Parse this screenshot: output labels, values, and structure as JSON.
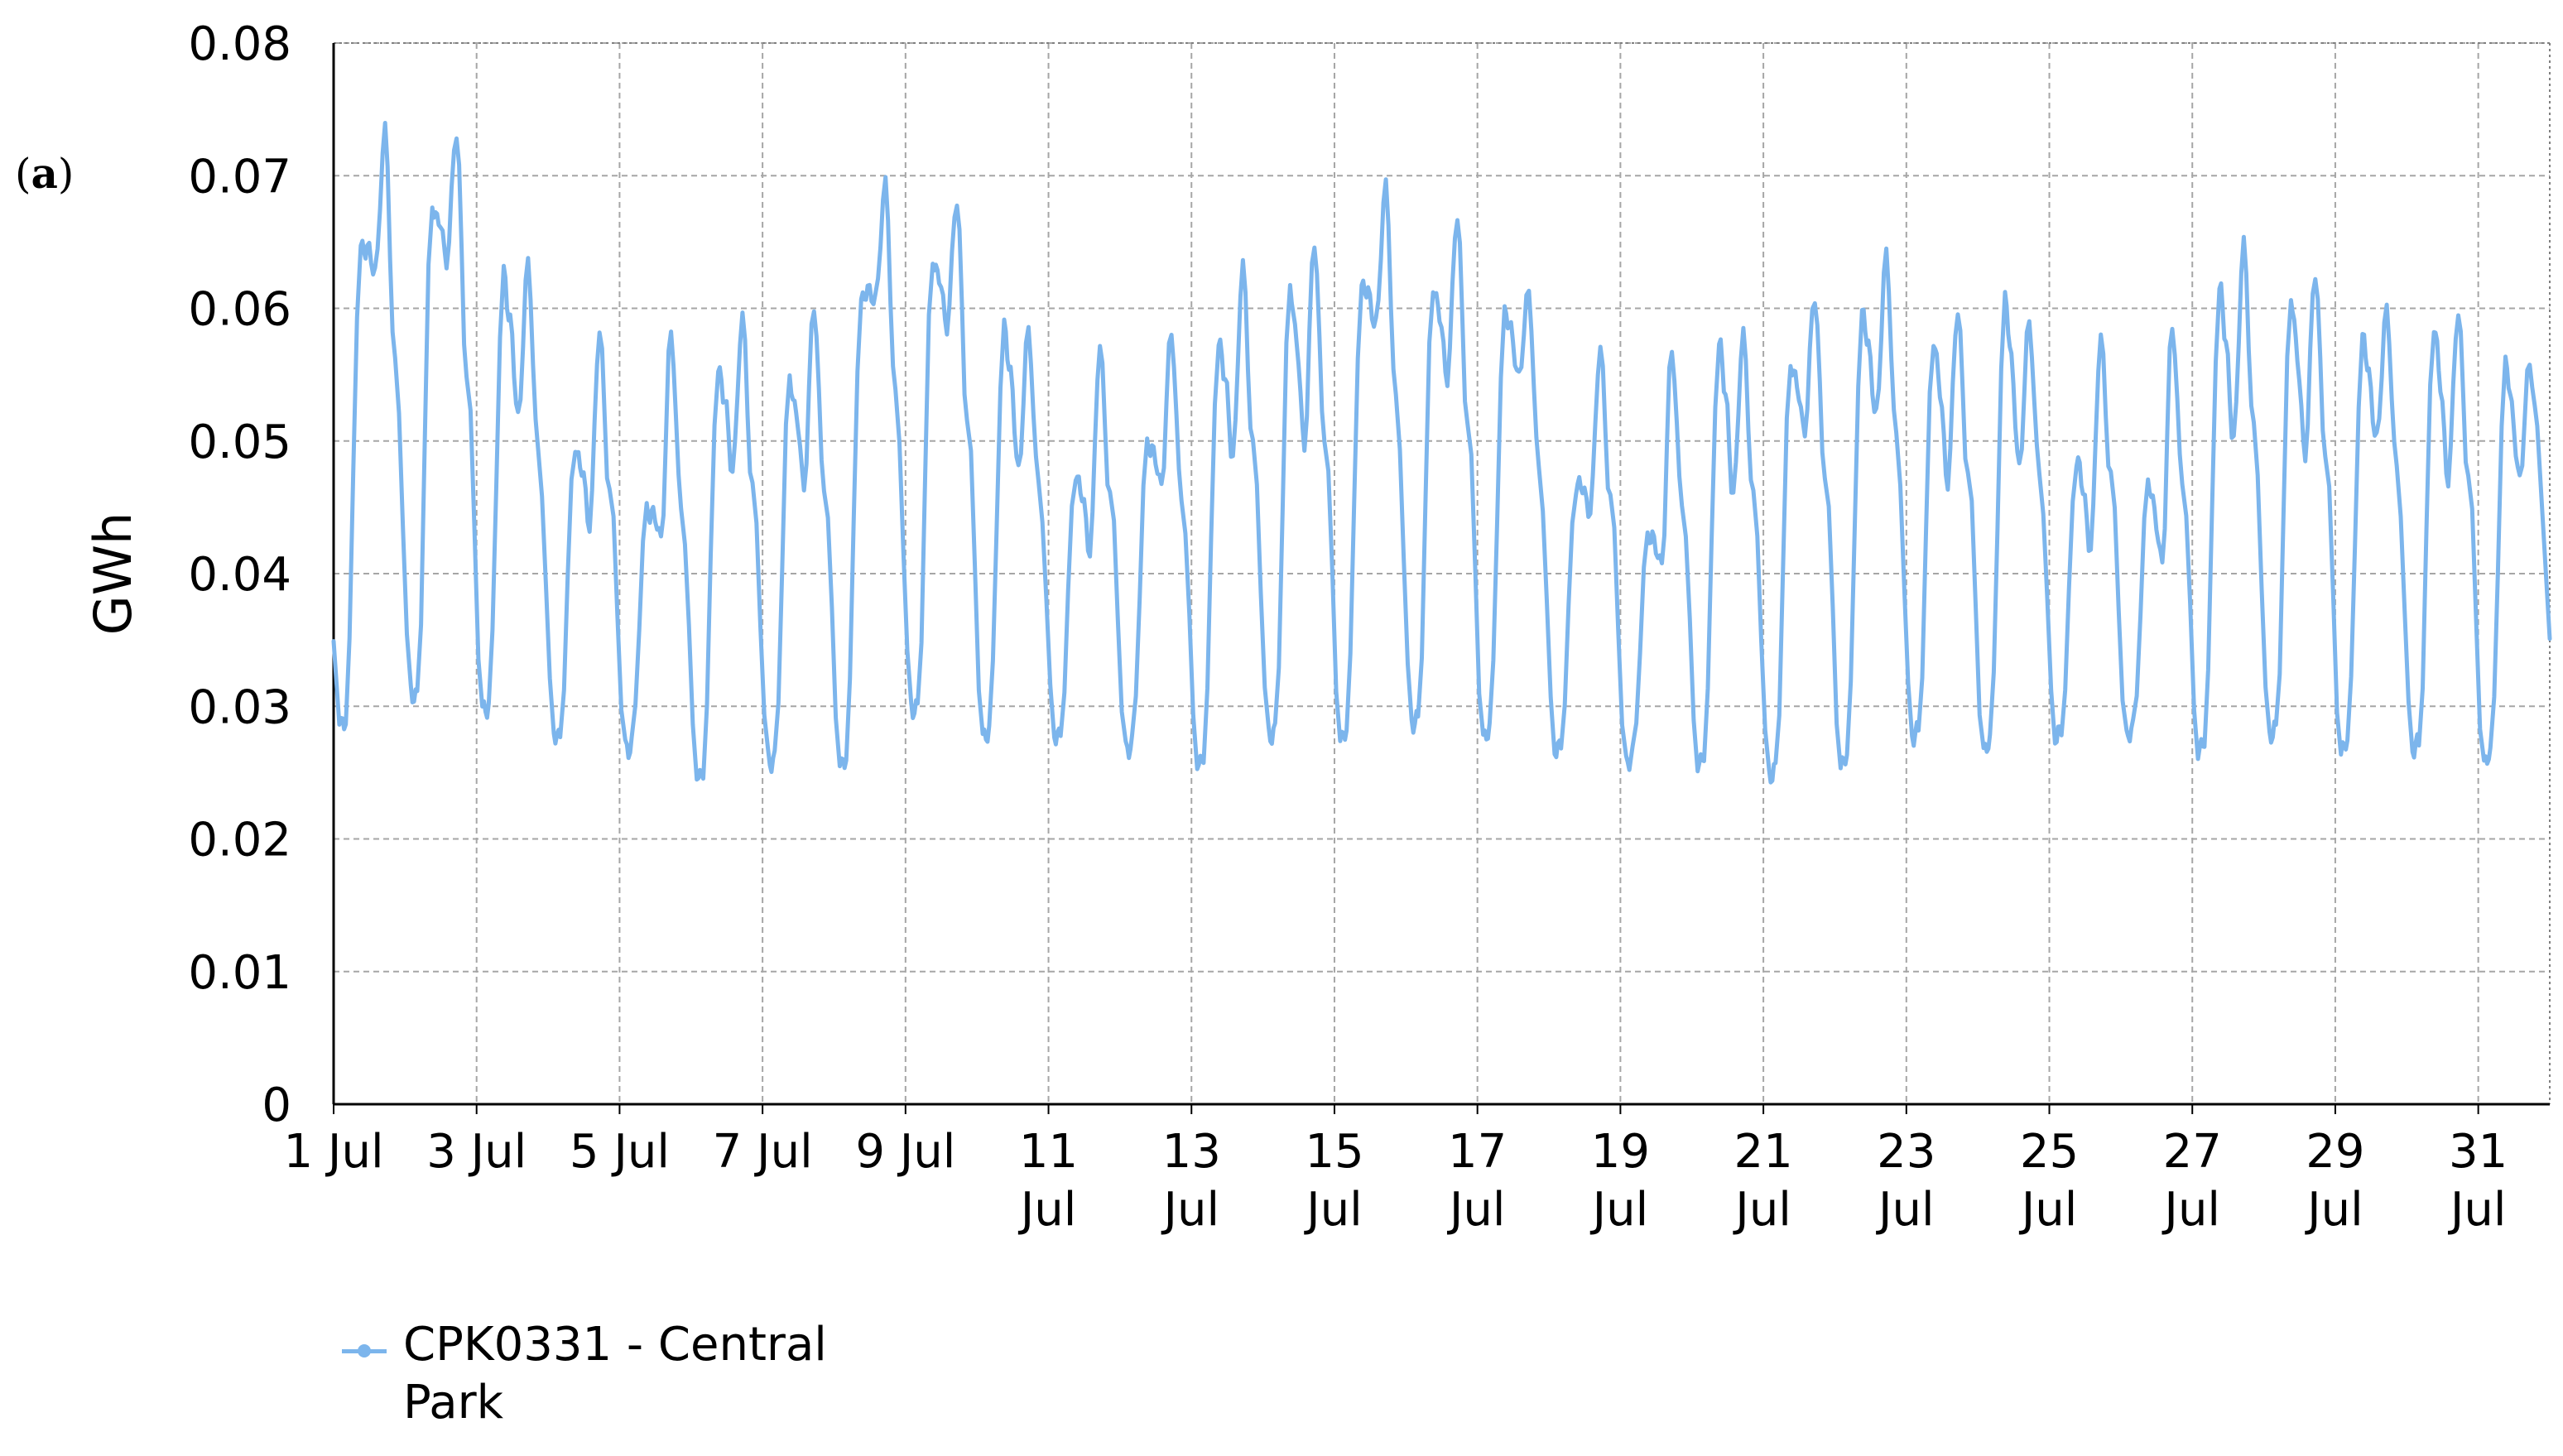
{
  "panel_label": "a",
  "colors": {
    "series": "#7cb5ec",
    "grid": "#a6a6a6",
    "axis": "#000000"
  },
  "chart_data": {
    "type": "line",
    "title": "",
    "xlabel": "",
    "ylabel": "GWh",
    "ylim": [
      0,
      0.08
    ],
    "xlim": [
      "2020-07-01 00:00",
      "2020-08-01 00:00"
    ],
    "grid": true,
    "legend_position": "bottom-left",
    "y_ticks": [
      "0",
      "0.01",
      "0.02",
      "0.03",
      "0.04",
      "0.05",
      "0.06",
      "0.07",
      "0.08"
    ],
    "x_ticks": [
      {
        "line1": "1 Jul",
        "line2": ""
      },
      {
        "line1": "3 Jul",
        "line2": ""
      },
      {
        "line1": "5 Jul",
        "line2": ""
      },
      {
        "line1": "7 Jul",
        "line2": ""
      },
      {
        "line1": "9 Jul",
        "line2": ""
      },
      {
        "line1": "11",
        "line2": "Jul"
      },
      {
        "line1": "13",
        "line2": "Jul"
      },
      {
        "line1": "15",
        "line2": "Jul"
      },
      {
        "line1": "17",
        "line2": "Jul"
      },
      {
        "line1": "19",
        "line2": "Jul"
      },
      {
        "line1": "21",
        "line2": "Jul"
      },
      {
        "line1": "23",
        "line2": "Jul"
      },
      {
        "line1": "25",
        "line2": "Jul"
      },
      {
        "line1": "27",
        "line2": "Jul"
      },
      {
        "line1": "29",
        "line2": "Jul"
      },
      {
        "line1": "31",
        "line2": "Jul"
      }
    ],
    "series": [
      {
        "name": "CPK0331 - Central Park",
        "daily": [
          {
            "date": "1 Jul",
            "min": 0.029,
            "peak": 0.065,
            "dip": 0.063,
            "peak2": 0.073
          },
          {
            "date": "2 Jul",
            "min": 0.031,
            "peak": 0.068,
            "dip": 0.064,
            "peak2": 0.073
          },
          {
            "date": "3 Jul",
            "min": 0.03,
            "peak": 0.063,
            "dip": 0.052,
            "peak2": 0.063
          },
          {
            "date": "4 Jul",
            "min": 0.028,
            "peak": 0.05,
            "dip": 0.044,
            "peak2": 0.058
          },
          {
            "date": "5 Jul",
            "min": 0.027,
            "peak": 0.045,
            "dip": 0.043,
            "peak2": 0.058
          },
          {
            "date": "6 Jul",
            "min": 0.025,
            "peak": 0.056,
            "dip": 0.048,
            "peak2": 0.059
          },
          {
            "date": "7 Jul",
            "min": 0.026,
            "peak": 0.055,
            "dip": 0.047,
            "peak2": 0.06
          },
          {
            "date": "8 Jul",
            "min": 0.026,
            "peak": 0.061,
            "dip": 0.061,
            "peak2": 0.069
          },
          {
            "date": "9 Jul",
            "min": 0.03,
            "peak": 0.064,
            "dip": 0.059,
            "peak2": 0.068
          },
          {
            "date": "10 Jul",
            "min": 0.028,
            "peak": 0.059,
            "dip": 0.048,
            "peak2": 0.058
          },
          {
            "date": "11 Jul",
            "min": 0.028,
            "peak": 0.048,
            "dip": 0.042,
            "peak2": 0.057
          },
          {
            "date": "12 Jul",
            "min": 0.027,
            "peak": 0.05,
            "dip": 0.047,
            "peak2": 0.058
          },
          {
            "date": "13 Jul",
            "min": 0.026,
            "peak": 0.058,
            "dip": 0.049,
            "peak2": 0.063
          },
          {
            "date": "14 Jul",
            "min": 0.028,
            "peak": 0.062,
            "dip": 0.05,
            "peak2": 0.065
          },
          {
            "date": "15 Jul",
            "min": 0.028,
            "peak": 0.062,
            "dip": 0.059,
            "peak2": 0.069
          },
          {
            "date": "16 Jul",
            "min": 0.029,
            "peak": 0.062,
            "dip": 0.055,
            "peak2": 0.067
          },
          {
            "date": "17 Jul",
            "min": 0.028,
            "peak": 0.06,
            "dip": 0.055,
            "peak2": 0.061
          },
          {
            "date": "18 Jul",
            "min": 0.027,
            "peak": 0.047,
            "dip": 0.045,
            "peak2": 0.057
          },
          {
            "date": "19 Jul",
            "min": 0.026,
            "peak": 0.043,
            "dip": 0.041,
            "peak2": 0.057
          },
          {
            "date": "20 Jul",
            "min": 0.026,
            "peak": 0.058,
            "dip": 0.046,
            "peak2": 0.058
          },
          {
            "date": "21 Jul",
            "min": 0.025,
            "peak": 0.056,
            "dip": 0.051,
            "peak2": 0.061
          },
          {
            "date": "22 Jul",
            "min": 0.026,
            "peak": 0.06,
            "dip": 0.052,
            "peak2": 0.064
          },
          {
            "date": "23 Jul",
            "min": 0.028,
            "peak": 0.058,
            "dip": 0.047,
            "peak2": 0.06
          },
          {
            "date": "24 Jul",
            "min": 0.027,
            "peak": 0.061,
            "dip": 0.048,
            "peak2": 0.059
          },
          {
            "date": "25 Jul",
            "min": 0.028,
            "peak": 0.049,
            "dip": 0.042,
            "peak2": 0.058
          },
          {
            "date": "26 Jul",
            "min": 0.028,
            "peak": 0.047,
            "dip": 0.041,
            "peak2": 0.059
          },
          {
            "date": "27 Jul",
            "min": 0.027,
            "peak": 0.062,
            "dip": 0.05,
            "peak2": 0.065
          },
          {
            "date": "28 Jul",
            "min": 0.028,
            "peak": 0.061,
            "dip": 0.049,
            "peak2": 0.063
          },
          {
            "date": "29 Jul",
            "min": 0.027,
            "peak": 0.058,
            "dip": 0.05,
            "peak2": 0.06
          },
          {
            "date": "30 Jul",
            "min": 0.027,
            "peak": 0.059,
            "dip": 0.047,
            "peak2": 0.06
          },
          {
            "date": "31 Jul",
            "min": 0.026,
            "peak": 0.056,
            "dip": 0.047,
            "peak2": 0.056
          }
        ],
        "start_value": 0.034,
        "end_value": 0.035
      }
    ]
  }
}
